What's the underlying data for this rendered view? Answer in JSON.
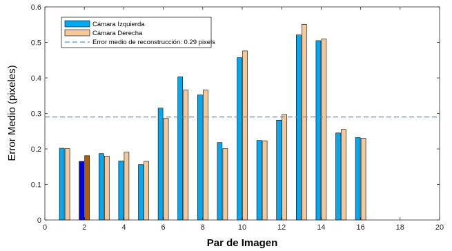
{
  "chart_data": {
    "type": "bar",
    "xlabel": "Par de Imagen",
    "ylabel": "Error Medio (pixeles)",
    "xlim": [
      0,
      20
    ],
    "ylim": [
      0,
      0.6
    ],
    "xticks": [
      0,
      2,
      4,
      6,
      8,
      10,
      12,
      14,
      16,
      18,
      20
    ],
    "yticks": [
      0,
      0.1,
      0.2,
      0.3,
      0.4,
      0.5,
      0.6
    ],
    "xtick_labels": [
      "0",
      "2",
      "4",
      "6",
      "8",
      "10",
      "12",
      "14",
      "16",
      "18",
      "20"
    ],
    "ytick_labels": [
      "0",
      "0.1",
      "0.2",
      "0.3",
      "0.4",
      "0.5",
      "0.6"
    ],
    "x": [
      1,
      2,
      3,
      4,
      5,
      6,
      7,
      8,
      9,
      10,
      11,
      12,
      13,
      14,
      15,
      16
    ],
    "series": [
      {
        "name": "Cámara Izquierda",
        "color": "#00a9f0",
        "values": [
          0.202,
          0.165,
          0.187,
          0.166,
          0.156,
          0.315,
          0.403,
          0.352,
          0.218,
          0.457,
          0.224,
          0.281,
          0.521,
          0.505,
          0.245,
          0.232
        ]
      },
      {
        "name": "Cámara Derecha",
        "color": "#f4c89b",
        "values": [
          0.201,
          0.181,
          0.18,
          0.191,
          0.165,
          0.286,
          0.366,
          0.366,
          0.201,
          0.476,
          0.223,
          0.297,
          0.551,
          0.51,
          0.255,
          0.23
        ]
      }
    ],
    "highlight": {
      "index": 1,
      "left_color": "#0000ee",
      "right_color": "#b35c00"
    },
    "reference_line": {
      "label": "Error medio de reconstrucción: 0.29 pixels",
      "value": 0.29,
      "color": "#4f95cf",
      "style": "dashed"
    },
    "legend_position": "top-left",
    "grid": false,
    "box": true
  }
}
